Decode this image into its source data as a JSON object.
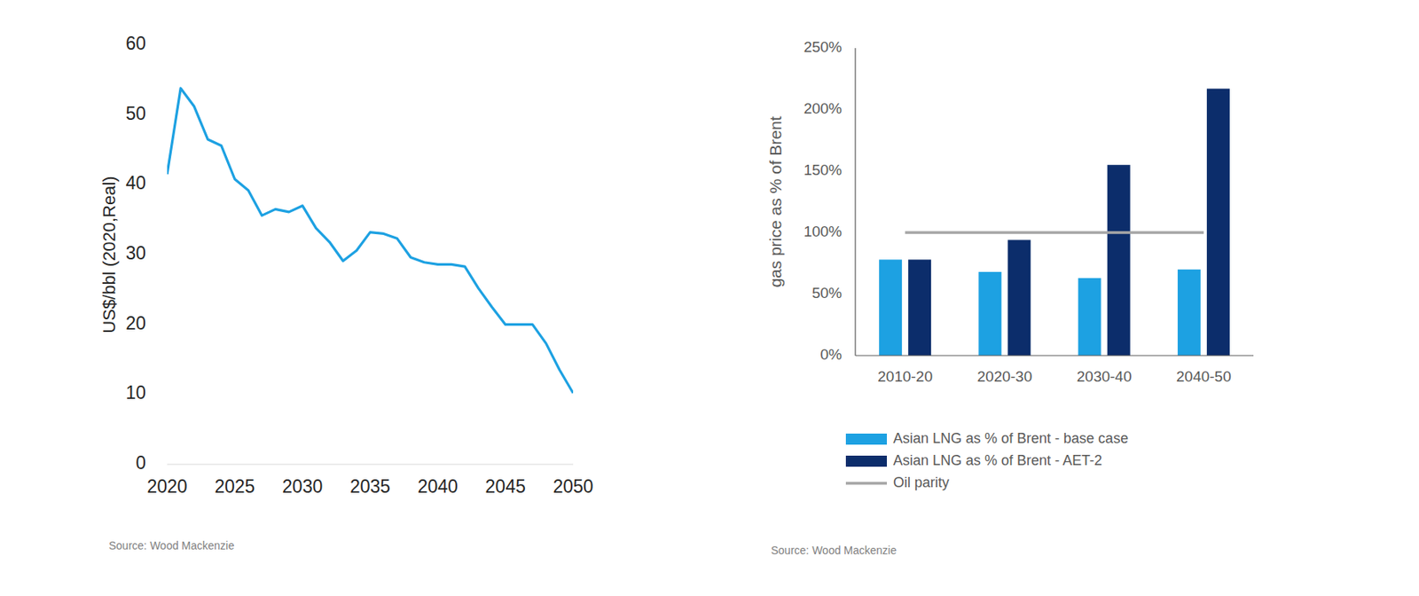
{
  "chart_data": [
    {
      "type": "line",
      "y_label": "US$/bbl (2020,Real)",
      "source": "Source: Wood Mackenzie",
      "x": [
        2020,
        2021,
        2022,
        2023,
        2024,
        2025,
        2026,
        2027,
        2028,
        2029,
        2030,
        2031,
        2032,
        2033,
        2034,
        2035,
        2036,
        2037,
        2038,
        2039,
        2040,
        2041,
        2042,
        2043,
        2044,
        2045,
        2046,
        2047,
        2048,
        2049,
        2050
      ],
      "values": [
        41.5,
        53.8,
        51.2,
        46.5,
        45.6,
        40.8,
        39.2,
        35.6,
        36.5,
        36.1,
        37.0,
        33.8,
        31.8,
        29.1,
        30.6,
        33.2,
        33.0,
        32.3,
        29.6,
        28.9,
        28.6,
        28.6,
        28.3,
        25.2,
        22.5,
        20.0,
        20.0,
        20.0,
        17.3,
        13.5,
        10.2
      ],
      "color": "#1da1e2",
      "xlim": [
        2020,
        2050
      ],
      "xticks": [
        2020,
        2025,
        2030,
        2035,
        2040,
        2045,
        2050
      ],
      "ylim": [
        0,
        60
      ],
      "yticks": [
        0,
        10,
        20,
        30,
        40,
        50,
        60
      ],
      "grid": false
    },
    {
      "type": "bar",
      "y_label": "gas price as % of Brent",
      "source": "Source: Wood Mackenzie",
      "categories": [
        "2010-20",
        "2020-30",
        "2030-40",
        "2040-50"
      ],
      "series": [
        {
          "name": "Asian LNG as % of Brent - base case",
          "color": "#1da1e2",
          "values": [
            78,
            68,
            63,
            70
          ]
        },
        {
          "name": "Asian LNG as % of Brent - AET-2",
          "color": "#0c2d6b",
          "values": [
            78,
            94,
            155,
            217
          ]
        },
        {
          "name": "Oil parity",
          "type": "line",
          "color": "#a6a6a6",
          "values": [
            100,
            100,
            100,
            100
          ]
        }
      ],
      "ylim": [
        0,
        250
      ],
      "yticks": [
        {
          "value": 0,
          "label": "0%"
        },
        {
          "value": 50,
          "label": "50%"
        },
        {
          "value": 100,
          "label": "100%"
        },
        {
          "value": 150,
          "label": "150%"
        },
        {
          "value": 200,
          "label": "200%"
        },
        {
          "value": 250,
          "label": "250%"
        }
      ],
      "grid": false,
      "legend": "bottom"
    }
  ]
}
